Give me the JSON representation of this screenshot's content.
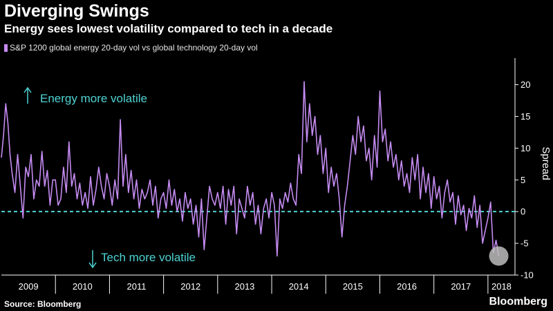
{
  "header": {
    "title": "Diverging Swings",
    "subtitle": "Energy sees lowest volatility compared to tech in a decade"
  },
  "footer": {
    "source": "Source: Bloomberg",
    "brand": "Bloomberg"
  },
  "colors": {
    "background": "#000000",
    "series": "#c58cf2",
    "zero_line": "#4fd3d3",
    "annotation": "#4fd3d3",
    "axis": "#ffffff",
    "text": "#ffffff",
    "highlight_circle": "#bdbdbd"
  },
  "chart_data": {
    "type": "line",
    "title": "Diverging Swings",
    "subtitle": "Energy sees lowest volatility compared to tech in a decade",
    "ylabel": "Spread",
    "xlabel": "",
    "ylim": [
      -10,
      23
    ],
    "xlim": [
      2009,
      2018.5
    ],
    "y_axis_position": "right",
    "y_ticks": [
      -10,
      -5,
      0,
      5,
      10,
      15,
      20
    ],
    "x_tick_labels": [
      "2009",
      "2010",
      "2011",
      "2012",
      "2013",
      "2014",
      "2015",
      "2016",
      "2017",
      "2018"
    ],
    "grid": false,
    "legend_position": "top-left",
    "reference_line": {
      "y": 0,
      "style": "dashed"
    },
    "annotations": [
      {
        "text": "Energy more volatile",
        "arrow": "up"
      },
      {
        "text": "Tech more volatile",
        "arrow": "down"
      }
    ],
    "series": [
      {
        "name": "S&P 1200 global energy 20-day vol vs global technology 20-day vol",
        "x": [
          2009.0,
          2009.04,
          2009.08,
          2009.12,
          2009.16,
          2009.2,
          2009.25,
          2009.3,
          2009.35,
          2009.4,
          2009.45,
          2009.5,
          2009.55,
          2009.6,
          2009.65,
          2009.7,
          2009.75,
          2009.8,
          2009.85,
          2009.9,
          2009.95,
          2010.0,
          2010.05,
          2010.1,
          2010.15,
          2010.2,
          2010.25,
          2010.3,
          2010.35,
          2010.4,
          2010.45,
          2010.5,
          2010.55,
          2010.6,
          2010.65,
          2010.7,
          2010.75,
          2010.8,
          2010.85,
          2010.9,
          2010.95,
          2011.0,
          2011.05,
          2011.1,
          2011.15,
          2011.2,
          2011.25,
          2011.3,
          2011.35,
          2011.4,
          2011.45,
          2011.5,
          2011.55,
          2011.6,
          2011.65,
          2011.7,
          2011.75,
          2011.8,
          2011.85,
          2011.9,
          2011.95,
          2012.0,
          2012.05,
          2012.1,
          2012.15,
          2012.2,
          2012.25,
          2012.3,
          2012.35,
          2012.4,
          2012.45,
          2012.5,
          2012.55,
          2012.6,
          2012.65,
          2012.7,
          2012.75,
          2012.8,
          2012.85,
          2012.9,
          2012.95,
          2013.0,
          2013.05,
          2013.1,
          2013.15,
          2013.2,
          2013.25,
          2013.3,
          2013.35,
          2013.4,
          2013.45,
          2013.5,
          2013.55,
          2013.6,
          2013.65,
          2013.7,
          2013.75,
          2013.8,
          2013.85,
          2013.9,
          2013.95,
          2014.0,
          2014.05,
          2014.1,
          2014.15,
          2014.2,
          2014.25,
          2014.3,
          2014.35,
          2014.4,
          2014.45,
          2014.5,
          2014.55,
          2014.6,
          2014.65,
          2014.7,
          2014.75,
          2014.8,
          2014.85,
          2014.9,
          2014.95,
          2015.0,
          2015.05,
          2015.1,
          2015.15,
          2015.2,
          2015.25,
          2015.3,
          2015.35,
          2015.4,
          2015.45,
          2015.5,
          2015.55,
          2015.6,
          2015.65,
          2015.7,
          2015.75,
          2015.8,
          2015.85,
          2015.9,
          2015.95,
          2016.0,
          2016.05,
          2016.1,
          2016.15,
          2016.2,
          2016.25,
          2016.3,
          2016.35,
          2016.4,
          2016.45,
          2016.5,
          2016.55,
          2016.6,
          2016.65,
          2016.7,
          2016.75,
          2016.8,
          2016.85,
          2016.9,
          2016.95,
          2017.0,
          2017.05,
          2017.1,
          2017.15,
          2017.2,
          2017.25,
          2017.3,
          2017.35,
          2017.4,
          2017.45,
          2017.5,
          2017.55,
          2017.6,
          2017.65,
          2017.7,
          2017.75,
          2017.8,
          2017.85,
          2017.9,
          2017.95,
          2018.0,
          2018.05,
          2018.1,
          2018.15,
          2018.2
        ],
        "values": [
          8.5,
          12.0,
          17.0,
          14.0,
          9.0,
          6.0,
          3.0,
          9.0,
          4.0,
          -1.0,
          7.0,
          5.5,
          9.0,
          2.0,
          5.0,
          4.0,
          9.5,
          4.0,
          6.5,
          1.0,
          5.0,
          5.0,
          1.0,
          2.0,
          7.0,
          3.0,
          11.0,
          4.0,
          6.0,
          2.0,
          4.5,
          1.0,
          3.0,
          0.5,
          5.5,
          1.0,
          3.5,
          7.0,
          4.0,
          2.0,
          6.0,
          4.0,
          1.0,
          5.0,
          2.0,
          14.5,
          4.0,
          9.0,
          3.0,
          6.5,
          2.0,
          5.0,
          0.5,
          3.5,
          2.0,
          3.0,
          5.0,
          1.0,
          4.0,
          -1.0,
          2.0,
          3.0,
          0.5,
          5.0,
          1.0,
          3.5,
          0.0,
          2.0,
          -1.5,
          3.0,
          0.5,
          2.0,
          -2.0,
          1.0,
          -4.0,
          2.0,
          -6.0,
          -1.0,
          4.0,
          2.0,
          1.0,
          3.0,
          0.5,
          4.0,
          -2.0,
          3.5,
          1.0,
          4.0,
          -3.5,
          2.0,
          0.5,
          -1.0,
          4.0,
          1.0,
          3.0,
          -2.0,
          1.0,
          -3.5,
          0.5,
          2.0,
          -1.0,
          3.0,
          1.0,
          -7.0,
          2.0,
          0.5,
          3.0,
          1.5,
          4.5,
          2.0,
          1.0,
          9.0,
          6.0,
          20.5,
          11.0,
          17.0,
          12.0,
          15.0,
          9.0,
          12.0,
          6.0,
          10.0,
          3.0,
          7.0,
          4.0,
          6.0,
          2.0,
          -4.0,
          1.0,
          4.0,
          8.0,
          12.0,
          9.0,
          15.0,
          11.0,
          13.5,
          8.0,
          10.0,
          5.0,
          12.0,
          7.0,
          19.0,
          11.0,
          13.0,
          8.0,
          11.0,
          7.0,
          9.0,
          5.0,
          8.0,
          4.0,
          6.0,
          3.0,
          8.5,
          5.0,
          9.0,
          2.0,
          7.0,
          3.0,
          6.0,
          0.5,
          5.5,
          2.0,
          4.0,
          -1.0,
          3.0,
          5.0,
          1.5,
          3.0,
          -2.0,
          2.5,
          -0.5,
          1.0,
          -3.0,
          0.5,
          -1.0,
          2.5,
          -2.5,
          1.0,
          -5.0,
          -3.0,
          -1.0,
          1.5,
          -6.5,
          -4.5,
          -7.0
        ]
      }
    ]
  }
}
